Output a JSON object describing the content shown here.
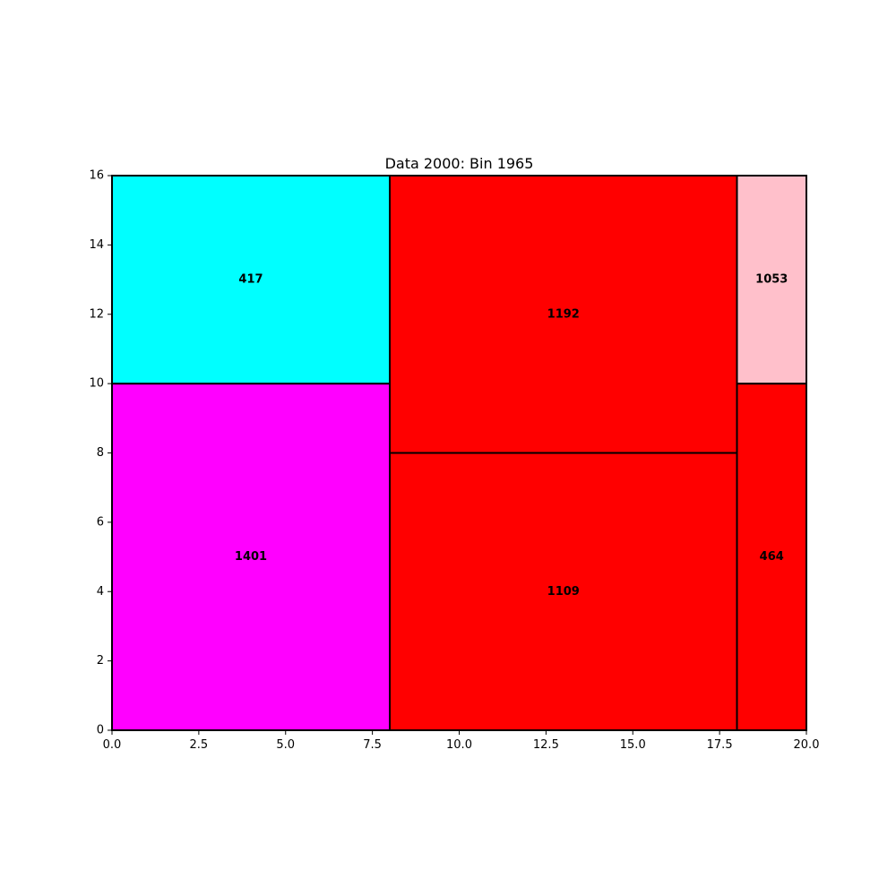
{
  "chart_data": {
    "type": "treemap",
    "title": "Data 2000: Bin 1965",
    "xlabel": "",
    "ylabel": "",
    "xlim": [
      0,
      20
    ],
    "ylim": [
      0,
      16
    ],
    "x_ticks": [
      "0.0",
      "2.5",
      "5.0",
      "7.5",
      "10.0",
      "12.5",
      "15.0",
      "17.5",
      "20.0"
    ],
    "y_ticks": [
      "0",
      "2",
      "4",
      "6",
      "8",
      "10",
      "12",
      "14",
      "16"
    ],
    "grid": false,
    "rectangles": [
      {
        "label": "1401",
        "x": 0,
        "y": 0,
        "width": 8,
        "height": 10,
        "color": "#ff00ff"
      },
      {
        "label": "417",
        "x": 0,
        "y": 10,
        "width": 8,
        "height": 6,
        "color": "#00ffff"
      },
      {
        "label": "1109",
        "x": 8,
        "y": 0,
        "width": 10,
        "height": 8,
        "color": "#ff0000"
      },
      {
        "label": "1192",
        "x": 8,
        "y": 8,
        "width": 10,
        "height": 8,
        "color": "#ff0000"
      },
      {
        "label": "464",
        "x": 18,
        "y": 0,
        "width": 2,
        "height": 10,
        "color": "#ff0000"
      },
      {
        "label": "1053",
        "x": 18,
        "y": 10,
        "width": 2,
        "height": 6,
        "color": "#ffc0cb"
      }
    ]
  }
}
